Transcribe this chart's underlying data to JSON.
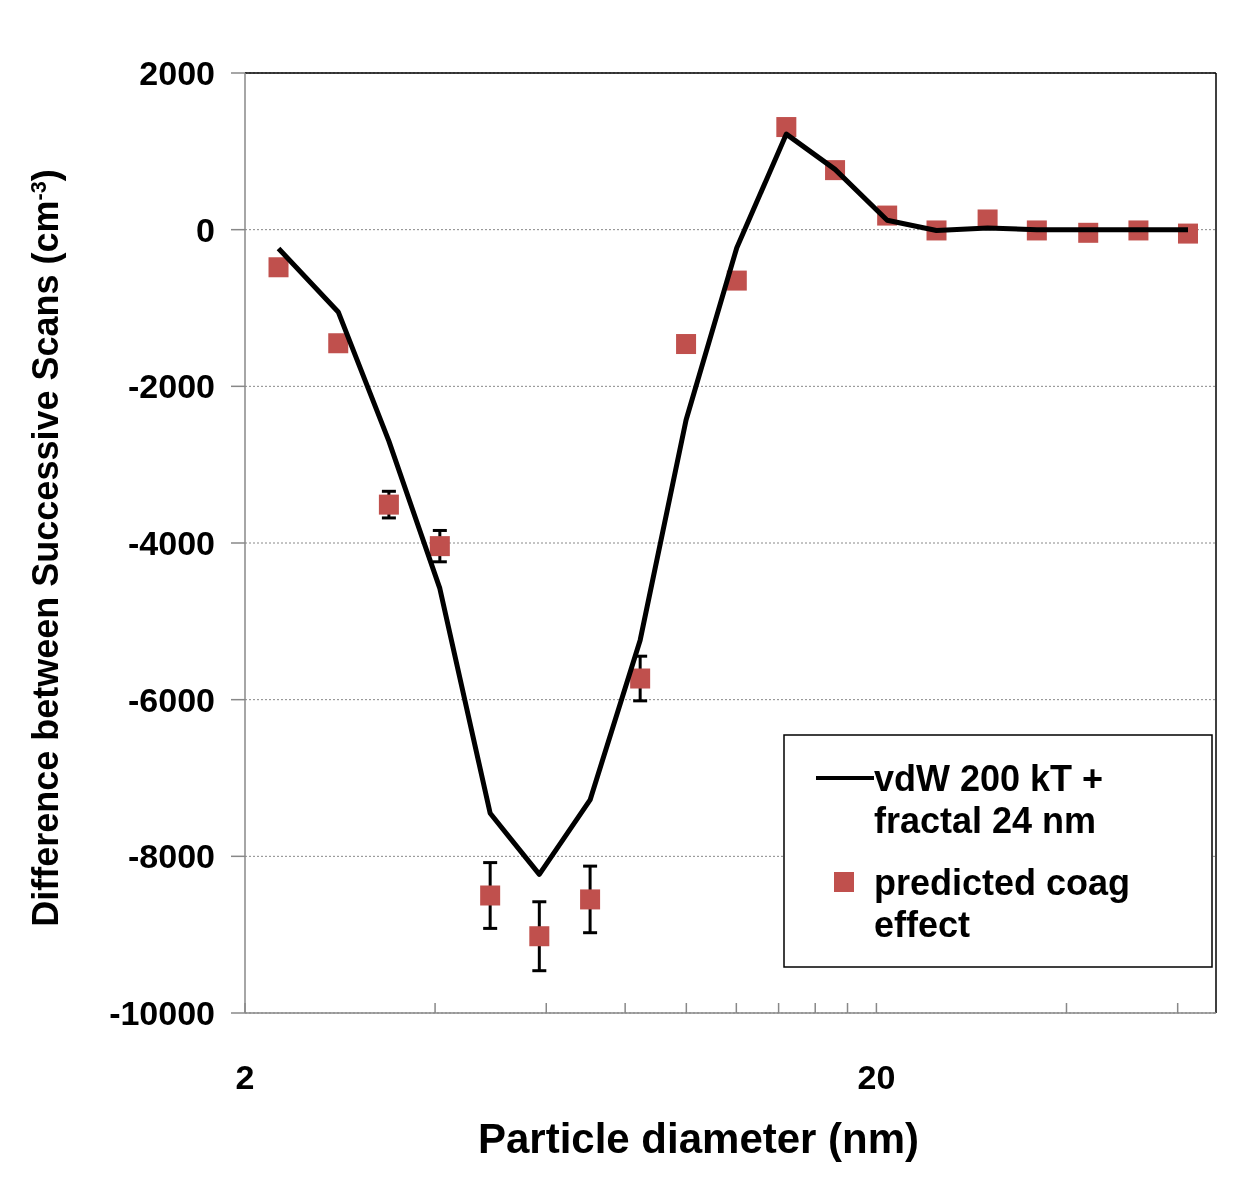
{
  "chart_data": {
    "type": "scatter",
    "xlabel": "Particle diameter (nm)",
    "ylabel": "Difference between  Successive  Scans (cm$^{-3}$)",
    "log": "x",
    "xlim": [
      2,
      69
    ],
    "xticks": [
      2,
      {
        "value": 4,
        "label": null
      },
      {
        "value": 6,
        "label": null
      },
      {
        "value": 8,
        "label": null
      },
      {
        "value": 10,
        "label": null
      },
      {
        "value": 12,
        "label": null
      },
      {
        "value": 14,
        "label": null
      },
      {
        "value": 16,
        "label": null
      },
      {
        "value": 18,
        "label": null
      },
      20,
      {
        "value": 40,
        "label": null
      },
      {
        "value": 60,
        "label": null
      }
    ],
    "ylim": [
      -10000,
      2000
    ],
    "yticks": [
      -10000,
      -8000,
      -6000,
      -4000,
      -2000,
      0,
      2000
    ],
    "grid": "y",
    "legend": "bottom right",
    "series": [
      {
        "name": "vdW 200 kT + fractal 24 nm",
        "type": "line",
        "color": "#000000",
        "marker": "none",
        "line_style": "solid",
        "x": [
          2.26,
          2.81,
          3.38,
          4.07,
          4.89,
          5.85,
          7.04,
          8.45,
          9.99,
          12.02,
          14.4,
          17.2,
          20.8,
          24.9,
          30.0,
          35.9,
          43.3,
          52.0,
          62.3
        ],
        "values": [
          -240,
          -1050,
          -2700,
          -4580,
          -7450,
          -8230,
          -7280,
          -5240,
          -2430,
          -230,
          1220,
          770,
          120,
          -10,
          20,
          0,
          0,
          0,
          0
        ]
      },
      {
        "name": "predicted coag effect",
        "color": "#c0504d",
        "marker": "square",
        "x": [
          2.26,
          2.81,
          3.38,
          4.07,
          4.89,
          5.85,
          7.04,
          8.45,
          9.99,
          12.02,
          14.4,
          17.2,
          20.8,
          24.9,
          30.0,
          35.9,
          43.3,
          52.0,
          62.3
        ],
        "values": [
          -480,
          -1450,
          -3510,
          -4040,
          -8500,
          -9020,
          -8550,
          -5730,
          -1460,
          -650,
          1310,
          760,
          180,
          -10,
          130,
          -10,
          -40,
          -10,
          -50
        ],
        "errors": [
          null,
          null,
          170,
          200,
          420,
          440,
          425,
          285,
          null,
          null,
          null,
          null,
          null,
          null,
          null,
          null,
          null,
          null,
          null
        ]
      }
    ]
  }
}
